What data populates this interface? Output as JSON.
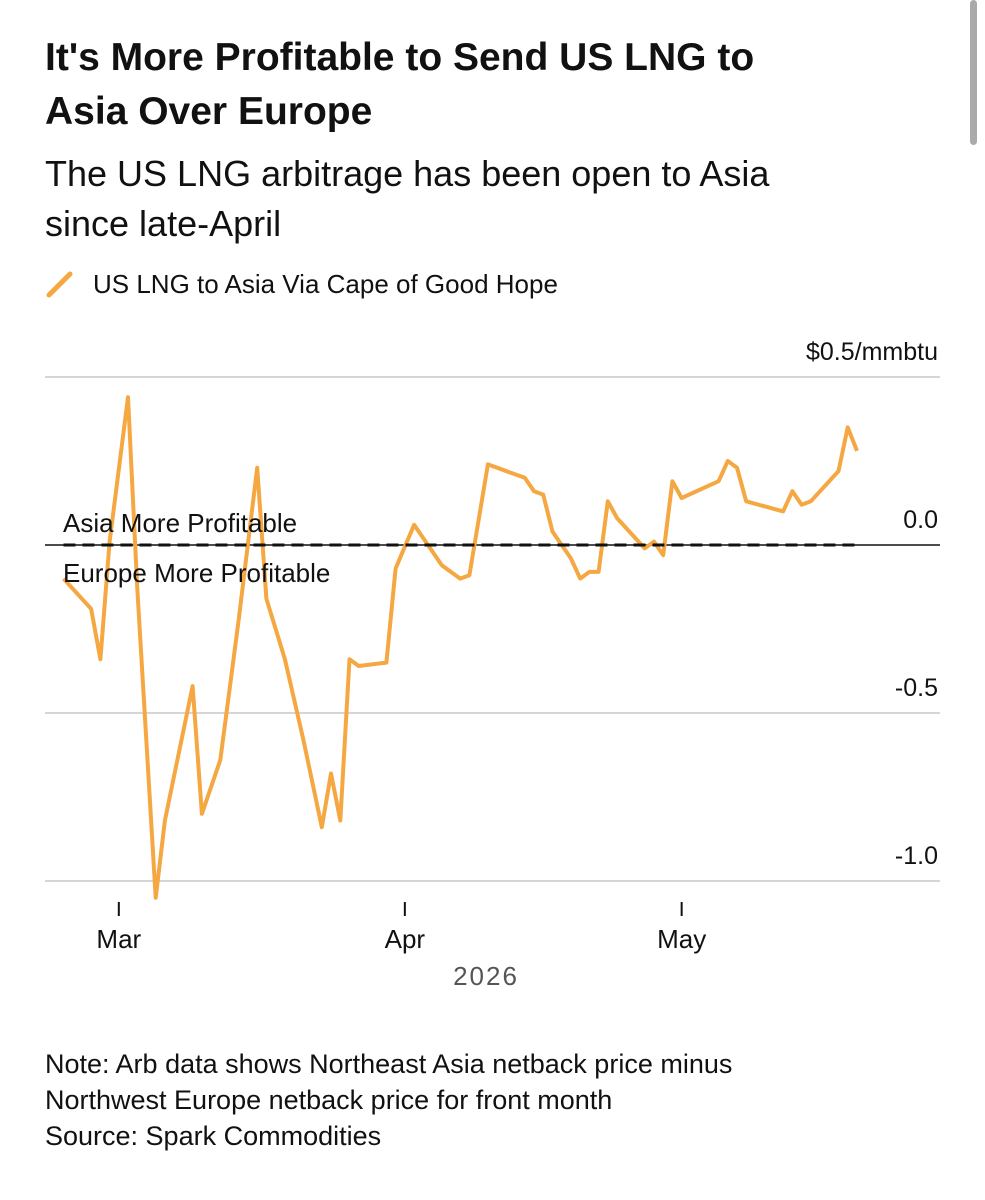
{
  "chart_data": {
    "type": "line",
    "title": [
      "It's More Profitable to Send US LNG to",
      "Asia Over Europe"
    ],
    "subtitle": [
      "The US LNG arbitrage has been open to Asia",
      "since late-April"
    ],
    "x": [
      54,
      57,
      58,
      59,
      61,
      62,
      64,
      65,
      68,
      69,
      71,
      73,
      75,
      76,
      78,
      80,
      82,
      83,
      84,
      85,
      86,
      89,
      90,
      92,
      95,
      97,
      98,
      100,
      104,
      105,
      106,
      107,
      109,
      110,
      111,
      112,
      113,
      114,
      117,
      118,
      119,
      120,
      121,
      125,
      126,
      127,
      128,
      132,
      133,
      134,
      135,
      138,
      139,
      140
    ],
    "series": [
      {
        "name": "US LNG to Asia Via Cape of Good Hope",
        "color": "#f5a742",
        "values": [
          -0.1,
          -0.19,
          -0.34,
          0.01,
          0.44,
          -0.13,
          -1.05,
          -0.82,
          -0.42,
          -0.8,
          -0.64,
          -0.22,
          0.23,
          -0.16,
          -0.34,
          -0.58,
          -0.84,
          -0.68,
          -0.82,
          -0.34,
          -0.36,
          -0.35,
          -0.07,
          0.06,
          -0.06,
          -0.1,
          -0.09,
          0.24,
          0.2,
          0.16,
          0.15,
          0.04,
          -0.04,
          -0.1,
          -0.08,
          -0.08,
          0.13,
          0.08,
          -0.01,
          0.01,
          -0.03,
          0.19,
          0.14,
          0.19,
          0.25,
          0.23,
          0.13,
          0.1,
          0.16,
          0.12,
          0.13,
          0.22,
          0.35,
          0.28
        ]
      }
    ],
    "xlim": [
      52,
      149
    ],
    "xticks": [
      {
        "value": 60,
        "label": "Mar"
      },
      {
        "value": 91,
        "label": "Apr"
      },
      {
        "value": 121,
        "label": "May"
      }
    ],
    "x_label": "2026",
    "ylim": [
      -1.0,
      0.5
    ],
    "yticks": [
      {
        "value": 0.5,
        "label": "$0.5/mmbtu"
      },
      {
        "value": 0,
        "label": "0.0"
      },
      {
        "value": -0.5,
        "label": "-0.5"
      },
      {
        "value": -1.0,
        "label": "-1.0"
      }
    ],
    "grid": true,
    "annotations": [
      "Asia More Profitable",
      "Europe More Profitable"
    ],
    "note": [
      "Note: Arb data shows Northeast Asia netback price minus",
      "Northwest Europe netback price for front month",
      "Source: Spark Commodities"
    ]
  }
}
